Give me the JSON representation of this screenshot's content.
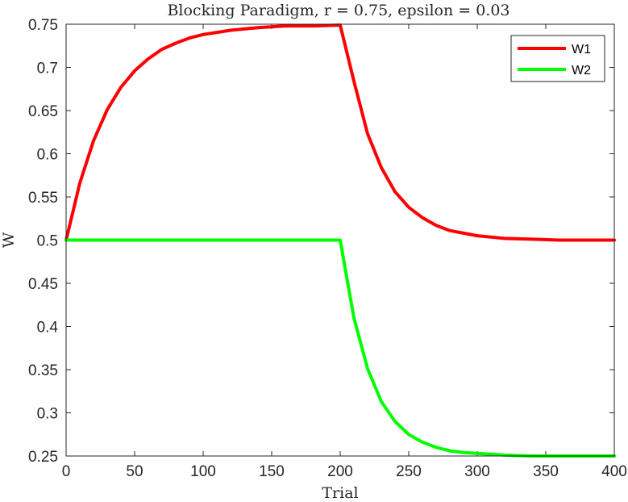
{
  "chart_data": {
    "type": "line",
    "title": "Blocking Paradigm, r = 0.75, epsilon = 0.03",
    "xlabel": "Trial",
    "ylabel": "W",
    "xlim": [
      0,
      400
    ],
    "ylim": [
      0.25,
      0.75
    ],
    "xticks": [
      0,
      50,
      100,
      150,
      200,
      250,
      300,
      350,
      400
    ],
    "xtick_labels": [
      "0",
      "50",
      "100",
      "150",
      "200",
      "250",
      "300",
      "350",
      "400"
    ],
    "yticks": [
      0.25,
      0.3,
      0.35,
      0.4,
      0.45,
      0.5,
      0.55,
      0.6,
      0.65,
      0.7,
      0.75
    ],
    "ytick_labels": [
      "0.25",
      "0.3",
      "0.35",
      "0.4",
      "0.45",
      "0.5",
      "0.55",
      "0.6",
      "0.65",
      "0.7",
      "0.75"
    ],
    "grid": false,
    "legend_position": "top-right",
    "series": [
      {
        "name": "W1",
        "color": "#ff0000",
        "x": [
          0,
          10,
          20,
          30,
          40,
          50,
          60,
          70,
          80,
          90,
          100,
          120,
          140,
          160,
          180,
          200,
          210,
          220,
          230,
          240,
          250,
          260,
          270,
          280,
          290,
          300,
          320,
          340,
          360,
          380,
          400
        ],
        "y": [
          0.5,
          0.566,
          0.615,
          0.651,
          0.677,
          0.696,
          0.71,
          0.721,
          0.728,
          0.734,
          0.738,
          0.743,
          0.746,
          0.748,
          0.748,
          0.749,
          0.684,
          0.623,
          0.584,
          0.556,
          0.538,
          0.526,
          0.517,
          0.511,
          0.508,
          0.505,
          0.502,
          0.501,
          0.5,
          0.5,
          0.5
        ]
      },
      {
        "name": "W2",
        "color": "#00ff00",
        "x": [
          0,
          50,
          100,
          150,
          200,
          210,
          220,
          230,
          240,
          250,
          260,
          270,
          280,
          290,
          300,
          320,
          340,
          360,
          380,
          400
        ],
        "y": [
          0.5,
          0.5,
          0.5,
          0.5,
          0.5,
          0.41,
          0.351,
          0.313,
          0.29,
          0.275,
          0.266,
          0.26,
          0.256,
          0.254,
          0.253,
          0.251,
          0.25,
          0.25,
          0.25,
          0.25
        ]
      }
    ]
  }
}
